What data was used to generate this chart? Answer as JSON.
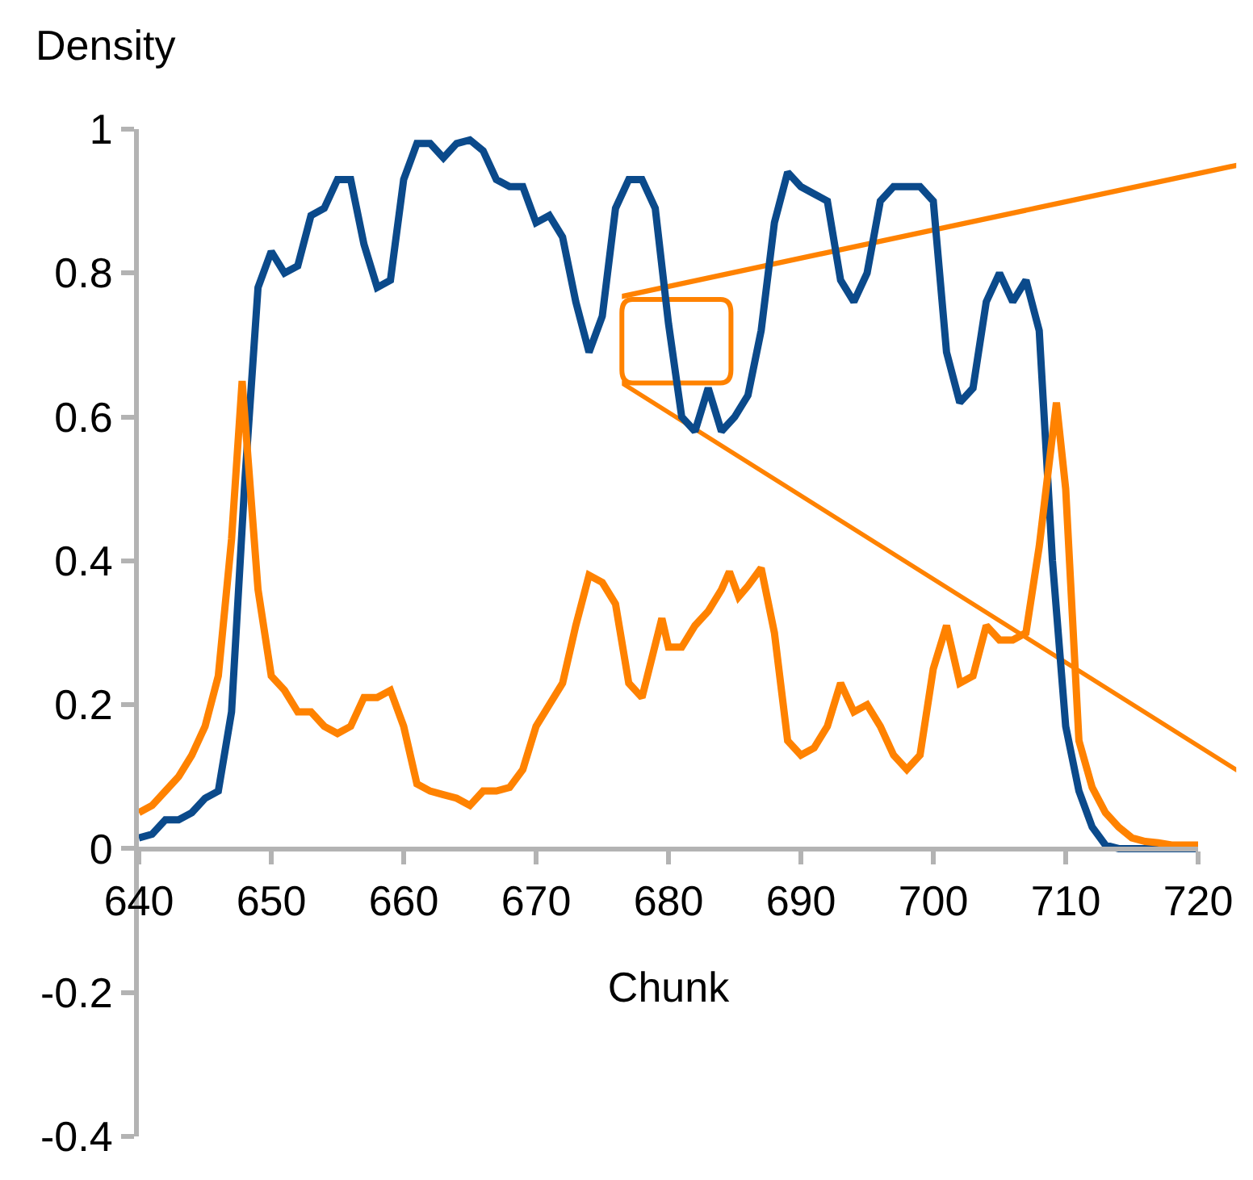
{
  "chart_data": {
    "type": "line",
    "xlabel": "Chunk",
    "ylabel": "Density",
    "xlim": [
      640,
      720
    ],
    "xticks": [
      640,
      650,
      660,
      670,
      680,
      690,
      700,
      710,
      720
    ],
    "ylim": [
      -0.4,
      1
    ],
    "yticks": [
      -0.4,
      -0.2,
      0,
      0.2,
      0.4,
      0.6,
      0.8,
      1
    ],
    "grid": false,
    "marker": "none",
    "line_style": "solid",
    "series": [
      {
        "color": "#0b4a8b",
        "x": [
          640,
          641,
          642,
          643,
          644,
          645,
          646,
          647,
          648,
          649,
          650,
          651,
          652,
          653,
          654,
          655,
          656,
          657,
          658,
          659,
          660,
          661,
          662,
          663,
          664,
          665,
          666,
          667,
          668,
          669,
          670,
          671,
          672,
          673,
          674,
          675,
          676,
          677,
          678,
          679,
          680,
          681,
          682,
          683,
          684,
          685,
          686,
          687,
          688,
          689,
          690,
          691,
          692,
          693,
          694,
          695,
          696,
          697,
          698,
          699,
          700,
          701,
          702,
          703,
          704,
          705,
          706,
          707,
          708,
          709,
          710,
          711,
          712,
          713,
          714,
          715,
          716,
          717,
          718,
          719,
          720
        ],
        "values": [
          0.015,
          0.02,
          0.04,
          0.04,
          0.05,
          0.07,
          0.08,
          0.19,
          0.51,
          0.78,
          0.83,
          0.8,
          0.81,
          0.88,
          0.89,
          0.93,
          0.93,
          0.84,
          0.78,
          0.79,
          0.93,
          0.98,
          0.98,
          0.96,
          0.98,
          0.985,
          0.97,
          0.93,
          0.92,
          0.92,
          0.87,
          0.88,
          0.85,
          0.76,
          0.69,
          0.74,
          0.89,
          0.93,
          0.93,
          0.89,
          0.73,
          0.6,
          0.58,
          0.64,
          0.58,
          0.6,
          0.63,
          0.72,
          0.87,
          0.94,
          0.92,
          0.91,
          0.9,
          0.79,
          0.76,
          0.8,
          0.9,
          0.92,
          0.92,
          0.92,
          0.9,
          0.69,
          0.62,
          0.64,
          0.76,
          0.8,
          0.76,
          0.79,
          0.72,
          0.4,
          0.17,
          0.08,
          0.03,
          0.005,
          0,
          0,
          0,
          0,
          0,
          0,
          0
        ]
      },
      {
        "color": "#ff8200",
        "x": [
          640,
          641,
          642,
          643,
          644,
          645,
          646,
          647,
          647.8,
          649,
          650,
          651,
          652,
          653,
          654,
          655,
          656,
          657,
          658,
          659,
          660,
          661,
          662,
          663,
          664,
          665,
          666,
          667,
          668,
          669,
          670,
          671,
          672,
          673,
          674,
          675,
          676,
          677,
          678,
          679.5,
          680,
          681,
          682,
          683,
          684,
          684.6,
          685.3,
          686,
          687,
          688,
          689,
          690,
          691,
          692,
          693,
          694,
          695,
          696,
          697,
          698,
          699,
          700,
          701,
          702,
          703,
          704,
          705,
          706,
          707,
          708,
          709.3,
          710,
          711,
          712,
          713,
          714,
          715,
          716,
          717,
          718,
          719,
          720
        ],
        "values": [
          0.05,
          0.06,
          0.08,
          0.1,
          0.13,
          0.17,
          0.24,
          0.43,
          0.65,
          0.36,
          0.24,
          0.22,
          0.19,
          0.19,
          0.17,
          0.16,
          0.17,
          0.21,
          0.21,
          0.22,
          0.17,
          0.09,
          0.08,
          0.075,
          0.07,
          0.06,
          0.08,
          0.08,
          0.085,
          0.11,
          0.17,
          0.2,
          0.23,
          0.31,
          0.38,
          0.37,
          0.34,
          0.23,
          0.21,
          0.32,
          0.28,
          0.28,
          0.31,
          0.33,
          0.36,
          0.385,
          0.35,
          0.365,
          0.39,
          0.3,
          0.15,
          0.13,
          0.14,
          0.17,
          0.23,
          0.19,
          0.2,
          0.17,
          0.13,
          0.11,
          0.13,
          0.25,
          0.31,
          0.23,
          0.24,
          0.31,
          0.29,
          0.29,
          0.3,
          0.42,
          0.62,
          0.5,
          0.15,
          0.085,
          0.05,
          0.03,
          0.015,
          0.01,
          0.008,
          0.005,
          0.005,
          0.005
        ]
      }
    ]
  }
}
